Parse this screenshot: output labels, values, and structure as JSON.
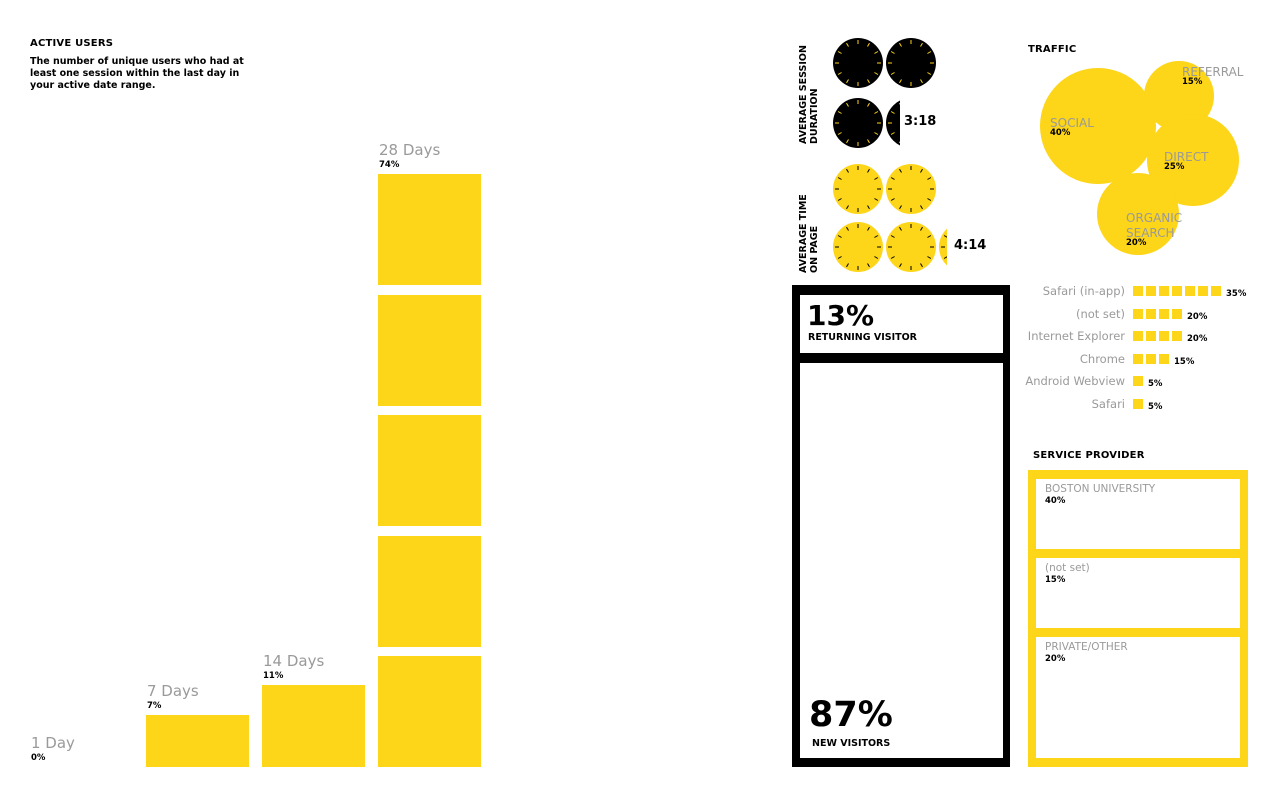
{
  "active_users": {
    "title": "ACTIVE USERS",
    "description": "The number of unique users who had at least one session within the last day in your active date range."
  },
  "session": {
    "duration_label": "AVERAGE SESSION\nDURATION",
    "duration_value": "3:18",
    "time_label": "AVERAGE TIME\nON PAGE",
    "time_value": "4:14"
  },
  "traffic_title": "TRAFFIC",
  "visitors": {
    "returning_pct": "13%",
    "returning_label": "RETURNING VISITOR",
    "new_pct": "87%",
    "new_label": "NEW VISITORS"
  },
  "service_provider_title": "SERVICE PROVIDER",
  "colors": {
    "accent": "#FDD519",
    "text": "#000000",
    "muted": "#9a9a9a"
  },
  "chart_data": [
    {
      "type": "bar",
      "categories": [
        "1 Day",
        "7 Days",
        "14 Days",
        "28 Days"
      ],
      "values": [
        0,
        7,
        11,
        74
      ],
      "labels": [
        "0%",
        "7%",
        "11%",
        "74%"
      ]
    },
    {
      "type": "bubble",
      "categories": [
        "SOCIAL",
        "REFERRAL",
        "DIRECT",
        "ORGANIC\nSEARCH"
      ],
      "values": [
        40,
        15,
        25,
        20
      ],
      "labels": [
        "40%",
        "15%",
        "25%",
        "20%"
      ]
    },
    {
      "type": "bar",
      "categories": [
        "Safari (in-app)",
        "(not set)",
        "Internet Explorer",
        "Chrome",
        "Android Webview",
        "Safari"
      ],
      "values": [
        35,
        20,
        20,
        15,
        5,
        5
      ],
      "labels": [
        "35%",
        "20%",
        "20%",
        "15%",
        "5%",
        "5%"
      ]
    },
    {
      "type": "table",
      "categories": [
        "BOSTON UNIVERSITY",
        "(not set)",
        "PRIVATE/OTHER"
      ],
      "values": [
        40,
        15,
        20
      ],
      "labels": [
        "40%",
        "15%",
        "20%"
      ]
    }
  ]
}
